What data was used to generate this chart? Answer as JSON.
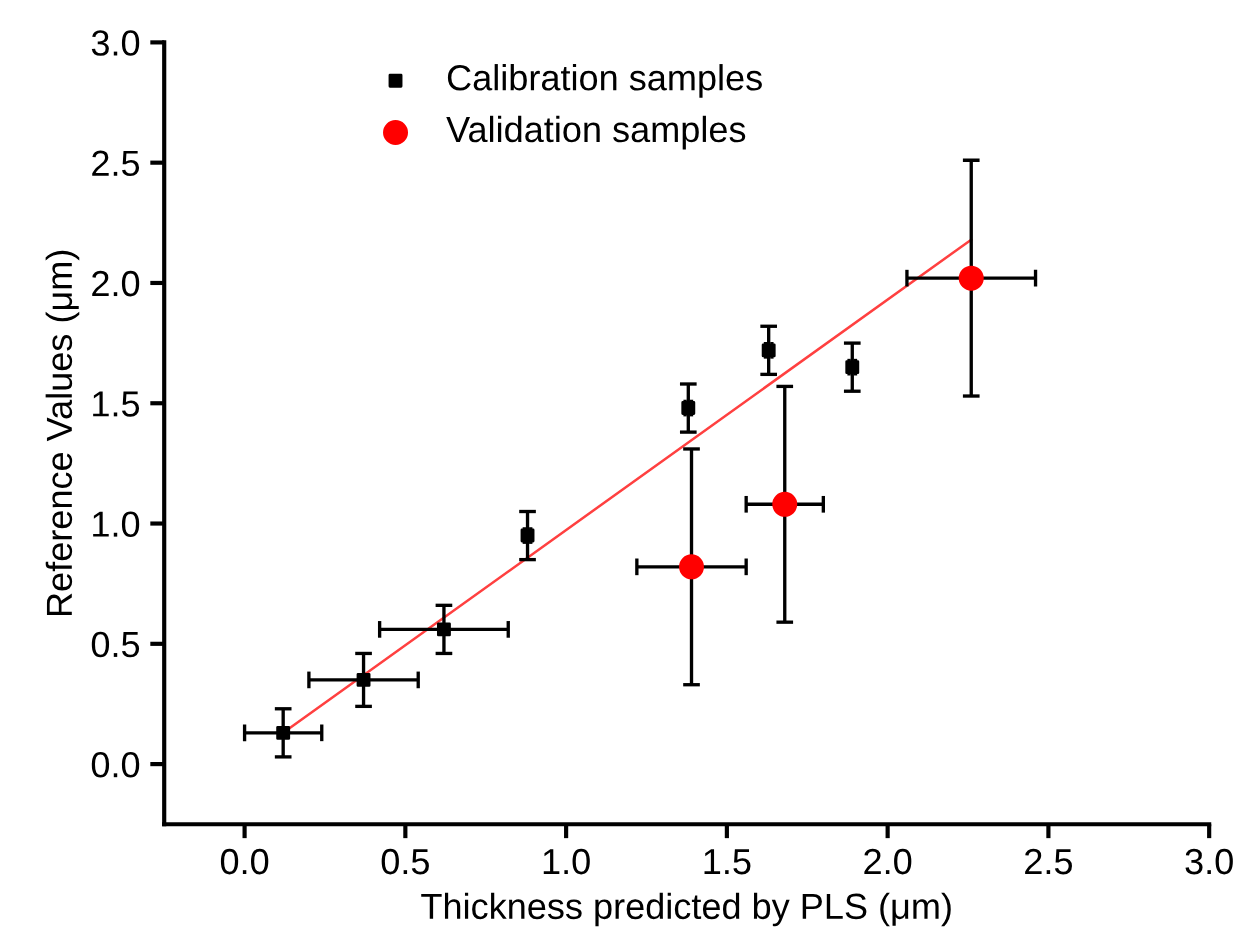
{
  "chart_data": {
    "type": "scatter",
    "xlabel": "Thickness predicted by PLS (μm)",
    "ylabel": "Reference Values (μm)",
    "xlim": [
      -0.25,
      3.0
    ],
    "ylim": [
      -0.25,
      3.0
    ],
    "xticks": [
      {
        "value": 0,
        "label": "0.0"
      },
      {
        "value": 0.5,
        "label": "0.5"
      },
      {
        "value": 1,
        "label": "1.0"
      },
      {
        "value": 1.5,
        "label": "1.5"
      },
      {
        "value": 2,
        "label": "2.0"
      },
      {
        "value": 2.5,
        "label": "2.5"
      },
      {
        "value": 3,
        "label": "3.0"
      }
    ],
    "yticks": [
      {
        "value": 0,
        "label": "0.0"
      },
      {
        "value": 0.5,
        "label": "0.5"
      },
      {
        "value": 1,
        "label": "1.0"
      },
      {
        "value": 1.5,
        "label": "1.5"
      },
      {
        "value": 2,
        "label": "2.0"
      },
      {
        "value": 2.5,
        "label": "2.5"
      },
      {
        "value": 3,
        "label": "3.0"
      }
    ],
    "grid": false,
    "legend": "top",
    "series": [
      {
        "name": "Calibration samples",
        "color": "#000000",
        "marker": "square",
        "x": [
          0.12,
          0.37,
          0.62,
          0.88,
          1.38,
          1.63,
          1.89
        ],
        "values": [
          0.13,
          0.35,
          0.56,
          0.95,
          1.48,
          1.72,
          1.65
        ],
        "xerrors": [
          0.12,
          0.17,
          0.2,
          0.01,
          0.01,
          0.01,
          0.01
        ],
        "errors": [
          0.1,
          0.11,
          0.1,
          0.1,
          0.1,
          0.1,
          0.1
        ]
      },
      {
        "name": "Validation samples",
        "color": "#ff0000",
        "marker": "circle",
        "x": [
          1.39,
          1.68,
          2.26
        ],
        "values": [
          0.82,
          1.08,
          2.02
        ],
        "xerrors": [
          0.17,
          0.12,
          0.2
        ],
        "errors": [
          0.49,
          0.49,
          0.49
        ]
      },
      {
        "type": "line",
        "color": "#ff4040",
        "marker": "none",
        "x": [
          0.12,
          2.26
        ],
        "values": [
          0.13,
          2.18
        ]
      }
    ]
  }
}
